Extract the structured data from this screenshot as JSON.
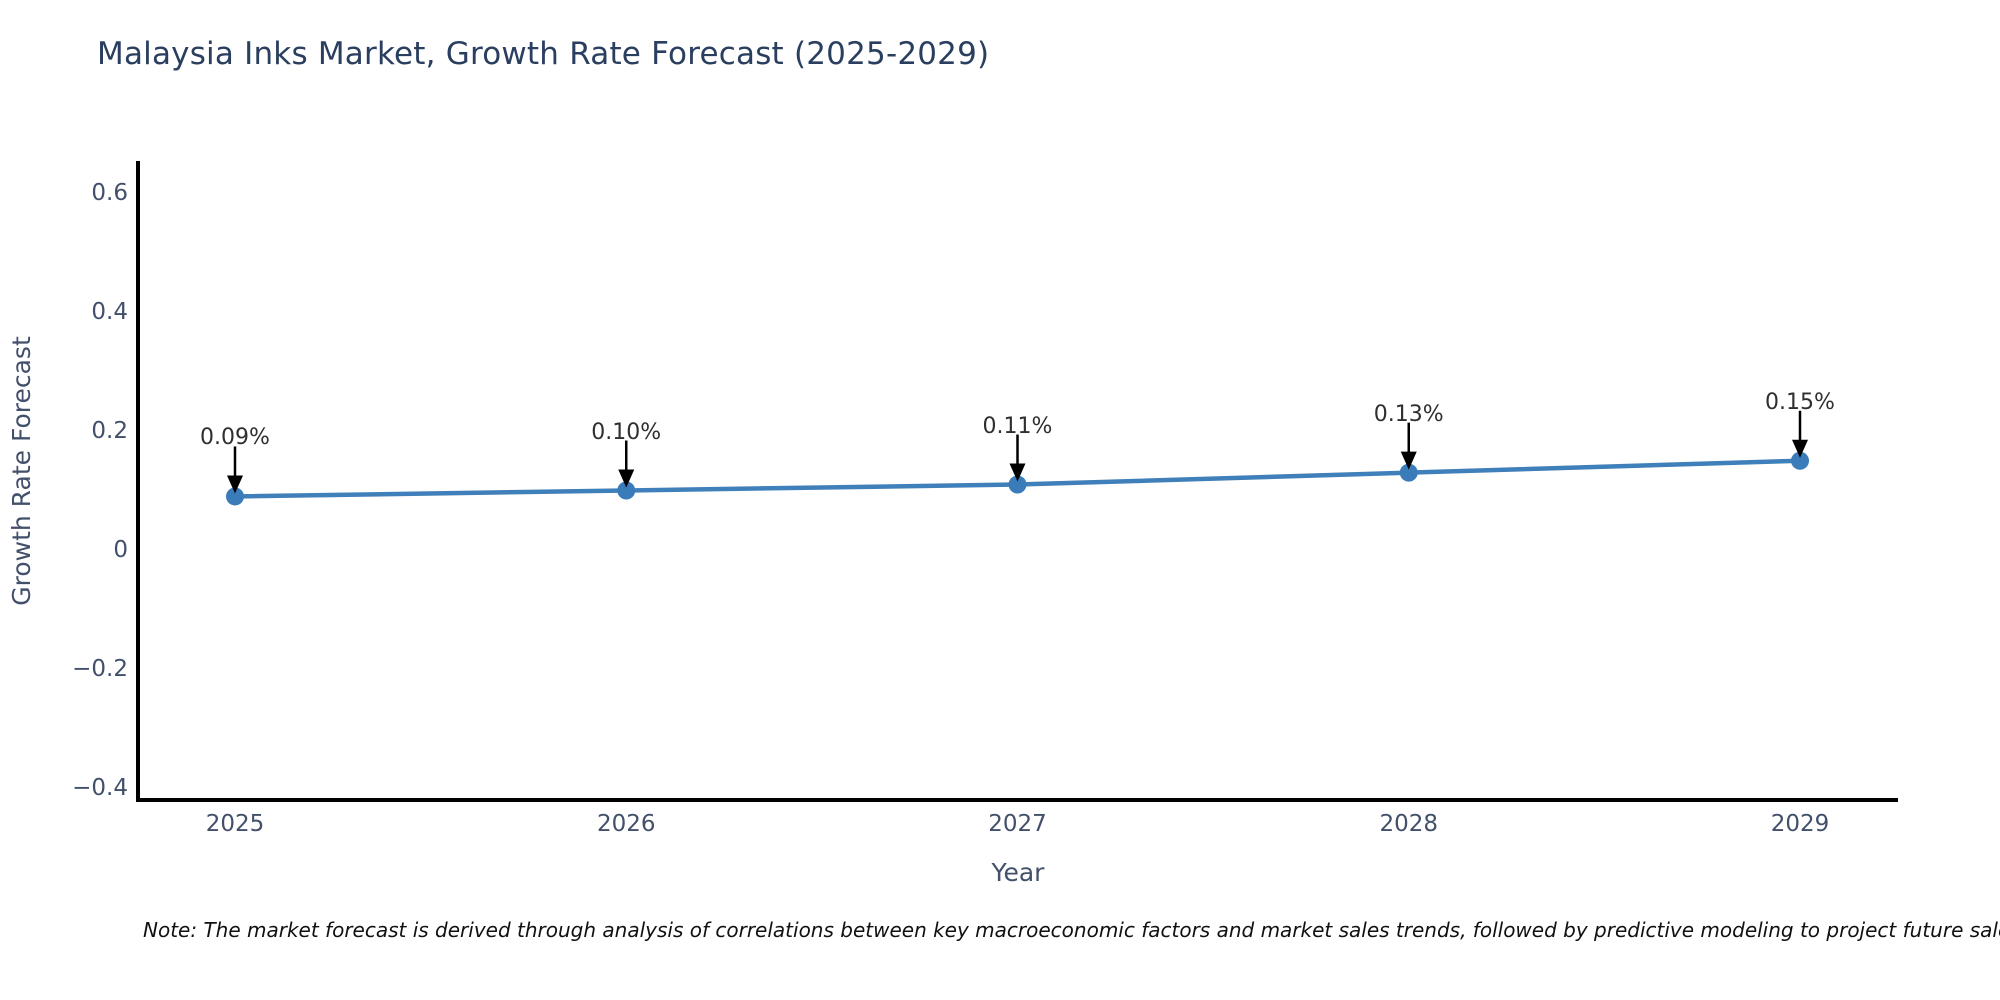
{
  "chart_data": {
    "type": "line",
    "title": "Malaysia Inks Market, Growth Rate Forecast (2025-2029)",
    "xlabel": "Year",
    "ylabel": "Growth Rate Forecast",
    "categories": [
      "2025",
      "2026",
      "2027",
      "2028",
      "2029"
    ],
    "values": [
      0.09,
      0.1,
      0.11,
      0.13,
      0.15
    ],
    "point_labels": [
      "0.09%",
      "0.10%",
      "0.11%",
      "0.13%",
      "0.15%"
    ],
    "ylim": [
      -0.42,
      0.66
    ],
    "yticks": [
      0.6,
      0.4,
      0.2,
      0,
      -0.2,
      -0.4
    ],
    "ytick_labels": [
      "0.6",
      "0.4",
      "0.2",
      "0",
      "−0.2",
      "−0.4"
    ],
    "grid": false,
    "legend": "none",
    "line_color": "#3f7fba",
    "marker_color": "#3a7cba",
    "axis_color": "#000000",
    "annotation_arrow_color": "#000000"
  },
  "note": {
    "text": "Note: The market forecast is derived through analysis of correlations between key macroeconomic factors and market sales trends, followed by predictive modeling to project future sales."
  }
}
